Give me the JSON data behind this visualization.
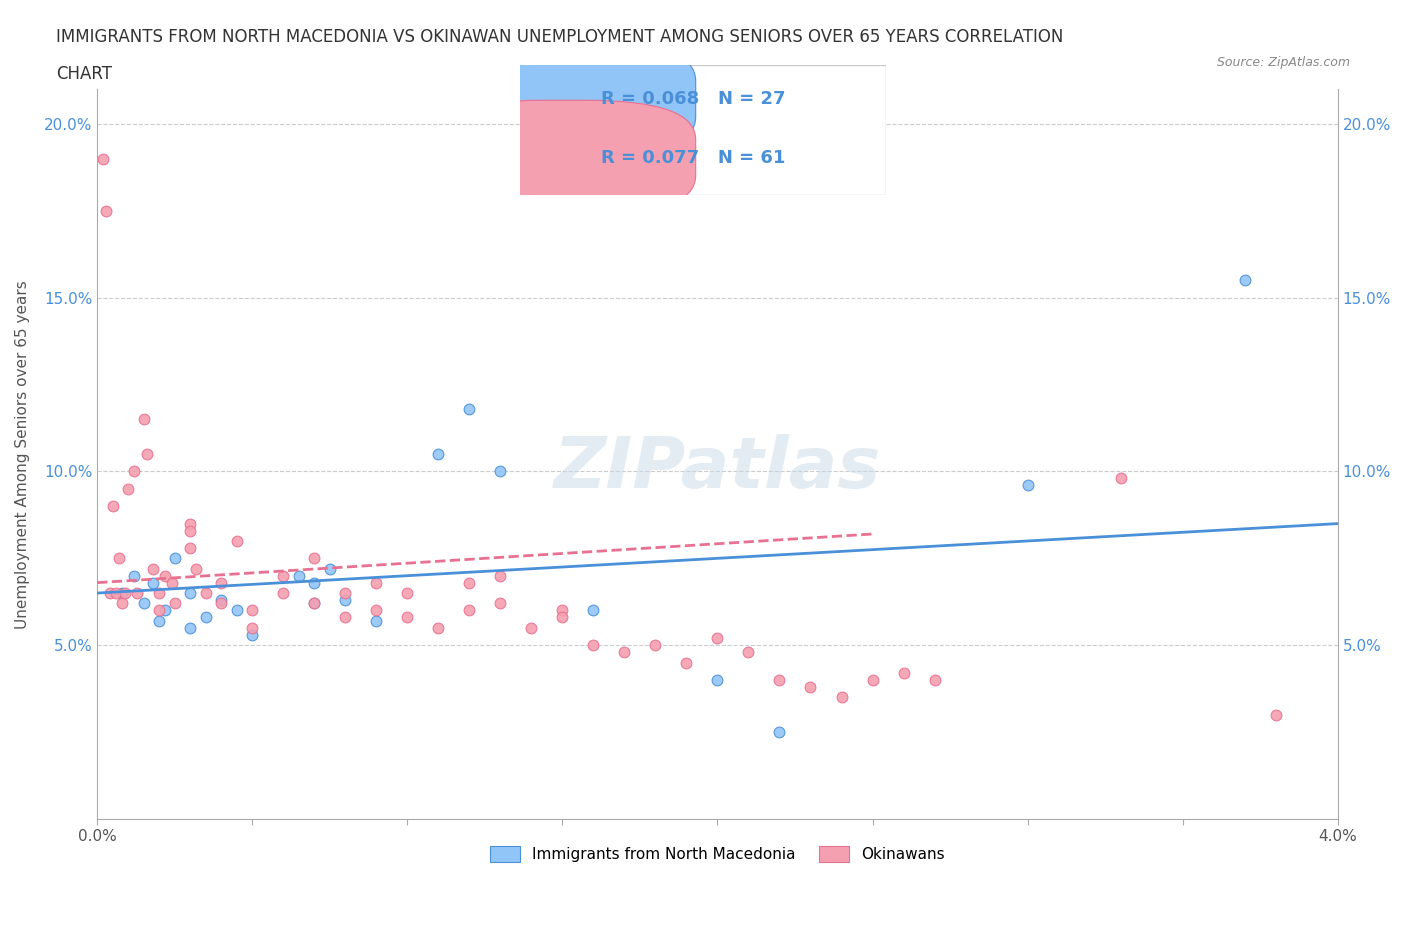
{
  "title_line1": "IMMIGRANTS FROM NORTH MACEDONIA VS OKINAWAN UNEMPLOYMENT AMONG SENIORS OVER 65 YEARS CORRELATION",
  "title_line2": "CHART",
  "source_text": "Source: ZipAtlas.com",
  "xlabel": "",
  "ylabel": "Unemployment Among Seniors over 65 years",
  "xmin": 0.0,
  "xmax": 0.04,
  "ymin": 0.0,
  "ymax": 0.21,
  "yticks": [
    0.05,
    0.1,
    0.15,
    0.2
  ],
  "ytick_labels": [
    "5.0%",
    "10.0%",
    "15.0%",
    "20.0%"
  ],
  "xticks": [
    0.0,
    0.005,
    0.01,
    0.015,
    0.02,
    0.025,
    0.03,
    0.035,
    0.04
  ],
  "xtick_labels": [
    "0.0%",
    "",
    "",
    "",
    "",
    "",
    "",
    "",
    "4.0%"
  ],
  "blue_R": 0.068,
  "blue_N": 27,
  "pink_R": 0.077,
  "pink_N": 61,
  "blue_color": "#92C5F7",
  "pink_color": "#F4A0B0",
  "blue_line_color": "#4A90D9",
  "pink_line_color": "#E87090",
  "watermark_text": "ZIPatlas",
  "watermark_color": "#C8D8E8",
  "legend_bottom_blue": "Immigrants from North Macedonia",
  "legend_bottom_pink": "Okinawans",
  "blue_scatter_x": [
    0.0008,
    0.0012,
    0.0015,
    0.0018,
    0.002,
    0.0022,
    0.0025,
    0.003,
    0.003,
    0.0035,
    0.004,
    0.0045,
    0.005,
    0.0065,
    0.007,
    0.007,
    0.0075,
    0.008,
    0.009,
    0.011,
    0.012,
    0.013,
    0.016,
    0.02,
    0.022,
    0.03,
    0.037
  ],
  "blue_scatter_y": [
    0.065,
    0.07,
    0.062,
    0.068,
    0.057,
    0.06,
    0.075,
    0.065,
    0.055,
    0.058,
    0.063,
    0.06,
    0.053,
    0.07,
    0.068,
    0.062,
    0.072,
    0.063,
    0.057,
    0.105,
    0.118,
    0.1,
    0.06,
    0.04,
    0.025,
    0.096,
    0.155
  ],
  "pink_scatter_x": [
    0.0002,
    0.0003,
    0.0004,
    0.0005,
    0.0006,
    0.0007,
    0.0008,
    0.0009,
    0.001,
    0.0012,
    0.0013,
    0.0015,
    0.0016,
    0.0018,
    0.002,
    0.002,
    0.0022,
    0.0024,
    0.0025,
    0.003,
    0.003,
    0.0032,
    0.0035,
    0.004,
    0.004,
    0.0045,
    0.005,
    0.005,
    0.006,
    0.006,
    0.007,
    0.007,
    0.008,
    0.008,
    0.009,
    0.009,
    0.01,
    0.01,
    0.011,
    0.012,
    0.012,
    0.013,
    0.013,
    0.014,
    0.015,
    0.015,
    0.016,
    0.017,
    0.018,
    0.019,
    0.02,
    0.021,
    0.022,
    0.023,
    0.024,
    0.025,
    0.026,
    0.027,
    0.033,
    0.038,
    0.003
  ],
  "pink_scatter_y": [
    0.19,
    0.175,
    0.065,
    0.09,
    0.065,
    0.075,
    0.062,
    0.065,
    0.095,
    0.1,
    0.065,
    0.115,
    0.105,
    0.072,
    0.065,
    0.06,
    0.07,
    0.068,
    0.062,
    0.085,
    0.078,
    0.072,
    0.065,
    0.068,
    0.062,
    0.08,
    0.06,
    0.055,
    0.07,
    0.065,
    0.075,
    0.062,
    0.065,
    0.058,
    0.068,
    0.06,
    0.065,
    0.058,
    0.055,
    0.06,
    0.068,
    0.07,
    0.062,
    0.055,
    0.06,
    0.058,
    0.05,
    0.048,
    0.05,
    0.045,
    0.052,
    0.048,
    0.04,
    0.038,
    0.035,
    0.04,
    0.042,
    0.04,
    0.098,
    0.03,
    0.083
  ],
  "blue_trend_x": [
    0.0,
    0.04
  ],
  "blue_trend_y": [
    0.065,
    0.085
  ],
  "pink_trend_x": [
    0.0,
    0.025
  ],
  "pink_trend_y": [
    0.068,
    0.082
  ]
}
